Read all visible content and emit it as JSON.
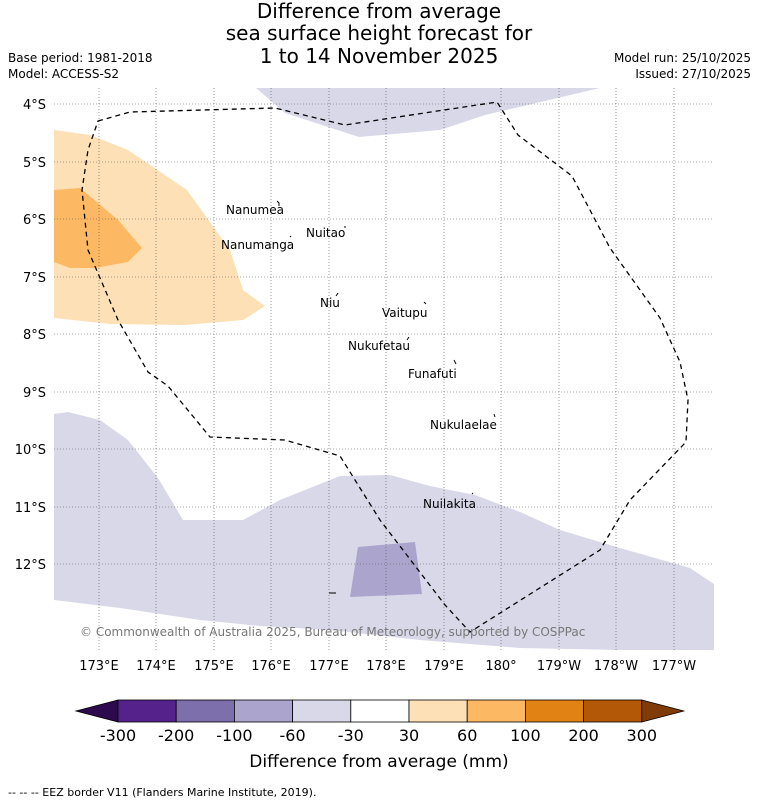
{
  "title": {
    "line1": "Difference from average",
    "line2": "sea surface height forecast for",
    "line3": "1 to 14 November 2025"
  },
  "meta": {
    "base_period": "Base period: 1981-2018",
    "model": "Model: ACCESS-S2",
    "model_run": "Model run: 25/10/2025",
    "issued": "Issued: 27/10/2025"
  },
  "map": {
    "lat_labels": [
      "4°S",
      "5°S",
      "6°S",
      "7°S",
      "8°S",
      "9°S",
      "10°S",
      "11°S",
      "12°S"
    ],
    "lon_labels": [
      "173°E",
      "174°E",
      "175°E",
      "176°E",
      "177°E",
      "178°E",
      "179°E",
      "180°",
      "179°W",
      "178°W",
      "177°W"
    ],
    "islands": [
      "Nanumea",
      "Nuitao",
      "Nanumanga",
      "Niu",
      "Vaitupu",
      "Nukufetau",
      "Funafuti",
      "Nukulaelae",
      "Nuilakita"
    ],
    "copyright": "© Commonwealth of Australia 2025, Bureau of Meteorology, supported by COSPPac"
  },
  "legend": {
    "ticks": [
      "-300",
      "-200",
      "-100",
      "-60",
      "-30",
      "30",
      "60",
      "100",
      "200",
      "300"
    ],
    "colors": [
      "#2d0a4e",
      "#55228c",
      "#7d6fab",
      "#aba4cc",
      "#d8d8e9",
      "#ffffff",
      "#fde0b6",
      "#fdb863",
      "#e08214",
      "#b35806",
      "#7f3b08"
    ],
    "title": "Difference from average (mm)"
  },
  "footnote": "-- -- -- EEZ border V11 (Flanders Marine Institute, 2019)."
}
